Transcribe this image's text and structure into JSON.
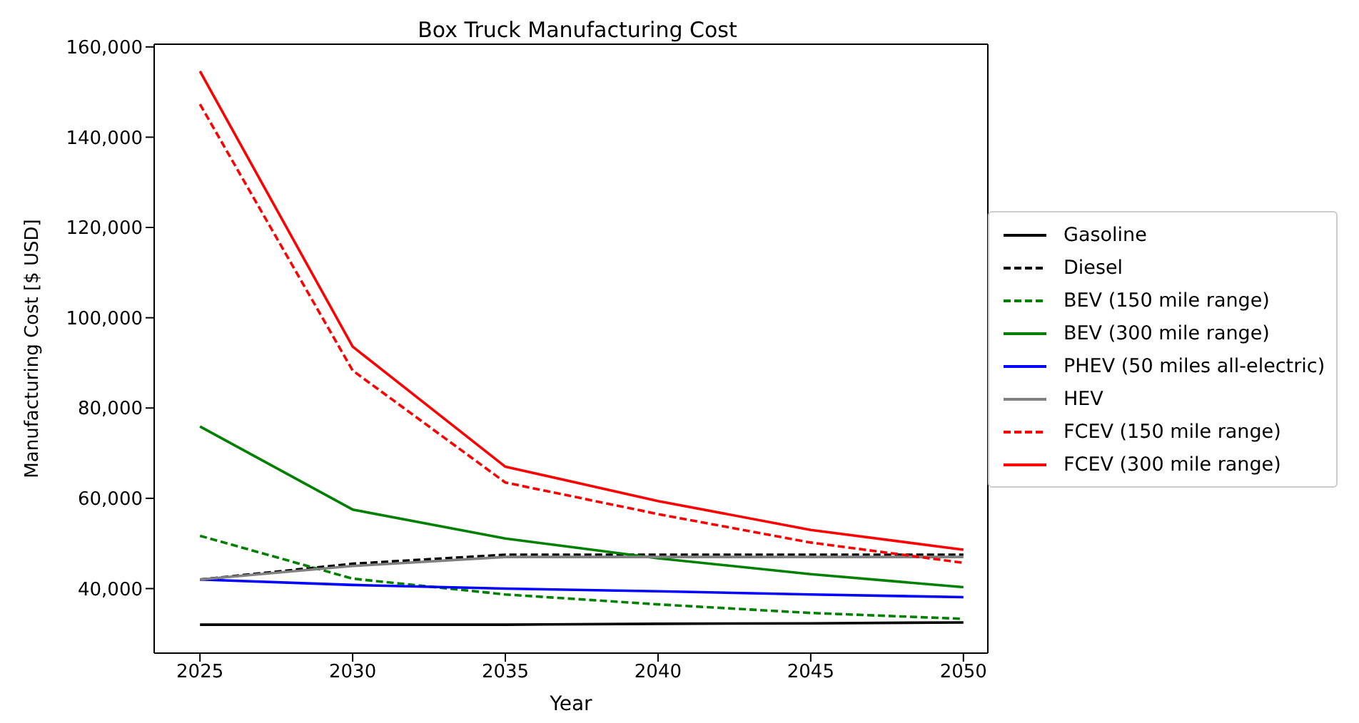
{
  "chart_data": {
    "type": "line",
    "title": "Box Truck Manufacturing Cost",
    "xlabel": "Year",
    "ylabel": "Manufacturing Cost [$ USD]",
    "x": [
      2025,
      2030,
      2035,
      2040,
      2045,
      2050
    ],
    "xlim": [
      2023.5,
      2050.8
    ],
    "xticks": [
      2025,
      2030,
      2035,
      2040,
      2045,
      2050
    ],
    "ylim": [
      25700,
      160600
    ],
    "yticks": [
      {
        "value": 40000,
        "label": "40,000"
      },
      {
        "value": 60000,
        "label": "60,000"
      },
      {
        "value": 80000,
        "label": "80,000"
      },
      {
        "value": 100000,
        "label": "100,000"
      },
      {
        "value": 120000,
        "label": "120,000"
      },
      {
        "value": 140000,
        "label": "140,000"
      },
      {
        "value": 160000,
        "label": "160,000"
      }
    ],
    "grid": false,
    "legend": "right",
    "marker": "none",
    "series": [
      {
        "name": "Gasoline",
        "color": "#000000",
        "line_style": "solid",
        "values": [
          32000,
          32000,
          32000,
          32200,
          32300,
          32500
        ]
      },
      {
        "name": "Diesel",
        "color": "#000000",
        "line_style": "dashed",
        "values": [
          42000,
          45500,
          47500,
          47500,
          47500,
          47500
        ]
      },
      {
        "name": "BEV (150 mile range)",
        "color": "#008000",
        "line_style": "dashed",
        "values": [
          51700,
          42200,
          38700,
          36500,
          34600,
          33300
        ]
      },
      {
        "name": "BEV (300 mile range)",
        "color": "#008000",
        "line_style": "solid",
        "values": [
          75900,
          57500,
          51100,
          46700,
          43200,
          40300
        ]
      },
      {
        "name": "PHEV (50 miles all-electric)",
        "color": "#0000ff",
        "line_style": "solid",
        "values": [
          42000,
          40800,
          40000,
          39400,
          38700,
          38100
        ]
      },
      {
        "name": "HEV",
        "color": "#808080",
        "line_style": "solid",
        "values": [
          42000,
          45000,
          47000,
          47000,
          47000,
          47000
        ]
      },
      {
        "name": "FCEV (150 mile range)",
        "color": "#ff0000",
        "line_style": "dashed",
        "values": [
          147300,
          88300,
          63500,
          56500,
          50200,
          45700
        ]
      },
      {
        "name": "FCEV (300 mile range)",
        "color": "#ff0000",
        "line_style": "solid",
        "values": [
          154600,
          93600,
          67000,
          59400,
          53000,
          48600
        ]
      }
    ]
  }
}
